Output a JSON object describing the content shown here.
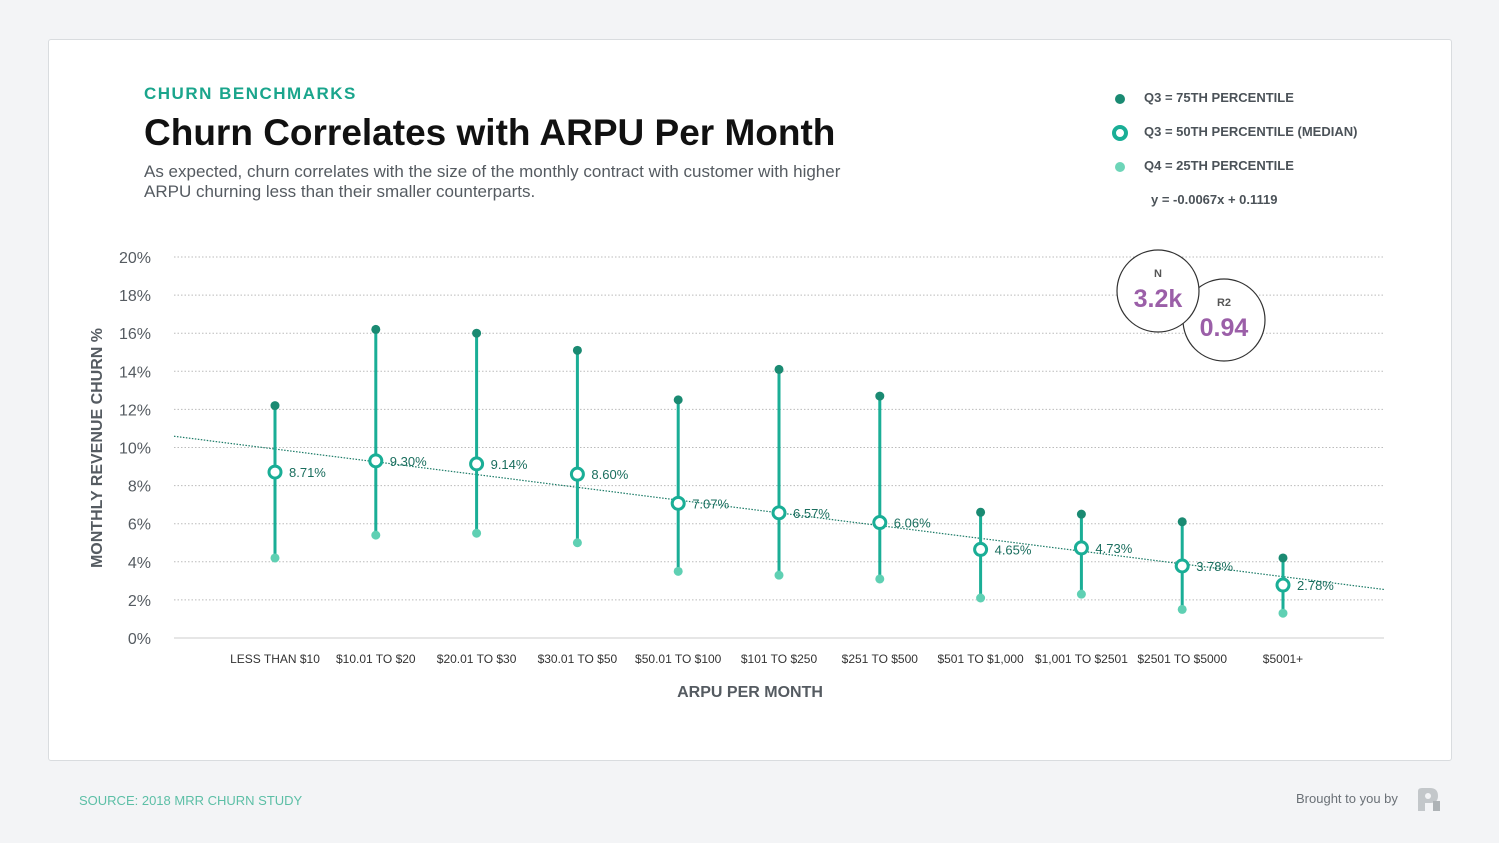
{
  "header": {
    "kicker": "CHURN BENCHMARKS",
    "title": "Churn Correlates with ARPU Per Month",
    "subtitle": "As expected, churn correlates with the size of the monthly contract with customer with higher ARPU churning less than their smaller counterparts."
  },
  "legend": {
    "items": [
      {
        "label": "Q3 = 75TH PERCENTILE",
        "color": "#1a8a72"
      },
      {
        "label": "Q3 = 50TH PERCENTILE (MEDIAN)",
        "color": "#1aae96"
      },
      {
        "label": "Q4 = 25TH PERCENTILE",
        "color": "#6dd5b8"
      }
    ],
    "equation": "y = -0.0067x + 0.1119"
  },
  "stats": {
    "n_label": "N",
    "n_value": "3.2k",
    "r2_label": "R2",
    "r2_value": "0.94",
    "color": "#9b5fa8"
  },
  "chart_data": {
    "type": "scatter",
    "xlabel": "ARPU PER MONTH",
    "ylabel": "MONTHLY REVENUE CHURN %",
    "ylim": [
      0,
      20
    ],
    "yticks": [
      "0%",
      "2%",
      "4%",
      "6%",
      "8%",
      "10%",
      "12%",
      "14%",
      "16%",
      "18%",
      "20%"
    ],
    "grid": true,
    "legend": "top-right",
    "categories": [
      "LESS THAN $10",
      "$10.01 TO $20",
      "$20.01 TO $30",
      "$30.01 TO $50",
      "$50.01 TO $100",
      "$101 TO $250",
      "$251 TO $500",
      "$501 TO $1,000",
      "$1,001 TO $2501",
      "$2501 TO $5000",
      "$5001+"
    ],
    "series": [
      {
        "name": "Q3 = 75TH PERCENTILE",
        "values": [
          12.2,
          16.2,
          16.0,
          15.1,
          12.5,
          14.1,
          12.7,
          6.6,
          6.5,
          6.1,
          4.2
        ]
      },
      {
        "name": "Q3 = 50TH PERCENTILE (MEDIAN)",
        "values": [
          8.71,
          9.3,
          9.14,
          8.6,
          7.07,
          6.57,
          6.06,
          4.65,
          4.73,
          3.78,
          2.78
        ]
      },
      {
        "name": "Q4 = 25TH PERCENTILE",
        "values": [
          4.2,
          5.4,
          5.5,
          5.0,
          3.5,
          3.3,
          3.1,
          2.1,
          2.3,
          1.5,
          1.3
        ]
      }
    ],
    "data_labels": [
      "8.71%",
      "9.30%",
      "9.14%",
      "8.60%",
      "7.07%",
      "6.57%",
      "6.06%",
      "4.65%",
      "4.73%",
      "3.78%",
      "2.78%"
    ],
    "trendline": {
      "slope": -0.0067,
      "intercept": 0.1119
    }
  },
  "footer": {
    "source": "SOURCE: 2018 MRR CHURN STUDY",
    "brought_by": "Brought to you by"
  }
}
